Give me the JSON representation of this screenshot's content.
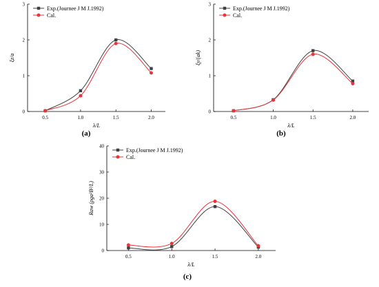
{
  "chart_data": [
    {
      "type": "line",
      "panel_label": "(a)",
      "x": [
        0.5,
        1.0,
        1.5,
        2.0
      ],
      "xticks": [
        "0.5",
        "1.0",
        "1.5",
        "2.0"
      ],
      "yticks": [
        "0",
        "1",
        "2",
        "3"
      ],
      "xlim": [
        0.25,
        2.2
      ],
      "ylim": [
        0,
        3
      ],
      "xlabel": "λ/L",
      "ylabel": "ξz/a",
      "legend_position": "top-left",
      "series": [
        {
          "name": "Exp.(Journee J M J.1992)",
          "color": "#404040",
          "marker": "square",
          "values": [
            0.02,
            0.58,
            2.0,
            1.2
          ]
        },
        {
          "name": "Cal.",
          "color": "#e8343a",
          "marker": "circle",
          "values": [
            0.02,
            0.44,
            1.9,
            1.08
          ]
        }
      ]
    },
    {
      "type": "line",
      "panel_label": "(b)",
      "x": [
        0.5,
        1.0,
        1.5,
        2.0
      ],
      "xticks": [
        "0.5",
        "1.0",
        "1.5",
        "2.0"
      ],
      "yticks": [
        "0",
        "1",
        "2",
        "3"
      ],
      "xlim": [
        0.25,
        2.2
      ],
      "ylim": [
        0,
        3
      ],
      "xlabel": "λ/L",
      "ylabel": "ξy/(ak)",
      "legend_position": "top-left",
      "series": [
        {
          "name": "Exp.(Journee J M J.1992)",
          "color": "#404040",
          "marker": "square",
          "values": [
            0.02,
            0.33,
            1.7,
            0.85
          ]
        },
        {
          "name": "Cal.",
          "color": "#e8343a",
          "marker": "circle",
          "values": [
            0.02,
            0.32,
            1.6,
            0.78
          ]
        }
      ]
    },
    {
      "type": "line",
      "panel_label": "(c)",
      "x": [
        0.5,
        1.0,
        1.5,
        2.0
      ],
      "xticks": [
        "0.5",
        "1.0",
        "1.5",
        "2.0"
      ],
      "yticks": [
        "0",
        "10",
        "20",
        "30",
        "40"
      ],
      "xlim": [
        0.25,
        2.2
      ],
      "ylim": [
        0,
        40
      ],
      "xlabel": "λ/L",
      "ylabel": "Raw (ρga²B²/L)",
      "legend_position": "top-left",
      "series": [
        {
          "name": "Exp.(Journee J M J.1992)",
          "color": "#404040",
          "marker": "square",
          "values": [
            1.0,
            1.5,
            16.8,
            1.3
          ]
        },
        {
          "name": "Cal.",
          "color": "#e8343a",
          "marker": "circle",
          "values": [
            2.1,
            2.7,
            18.8,
            1.8
          ]
        }
      ]
    }
  ]
}
